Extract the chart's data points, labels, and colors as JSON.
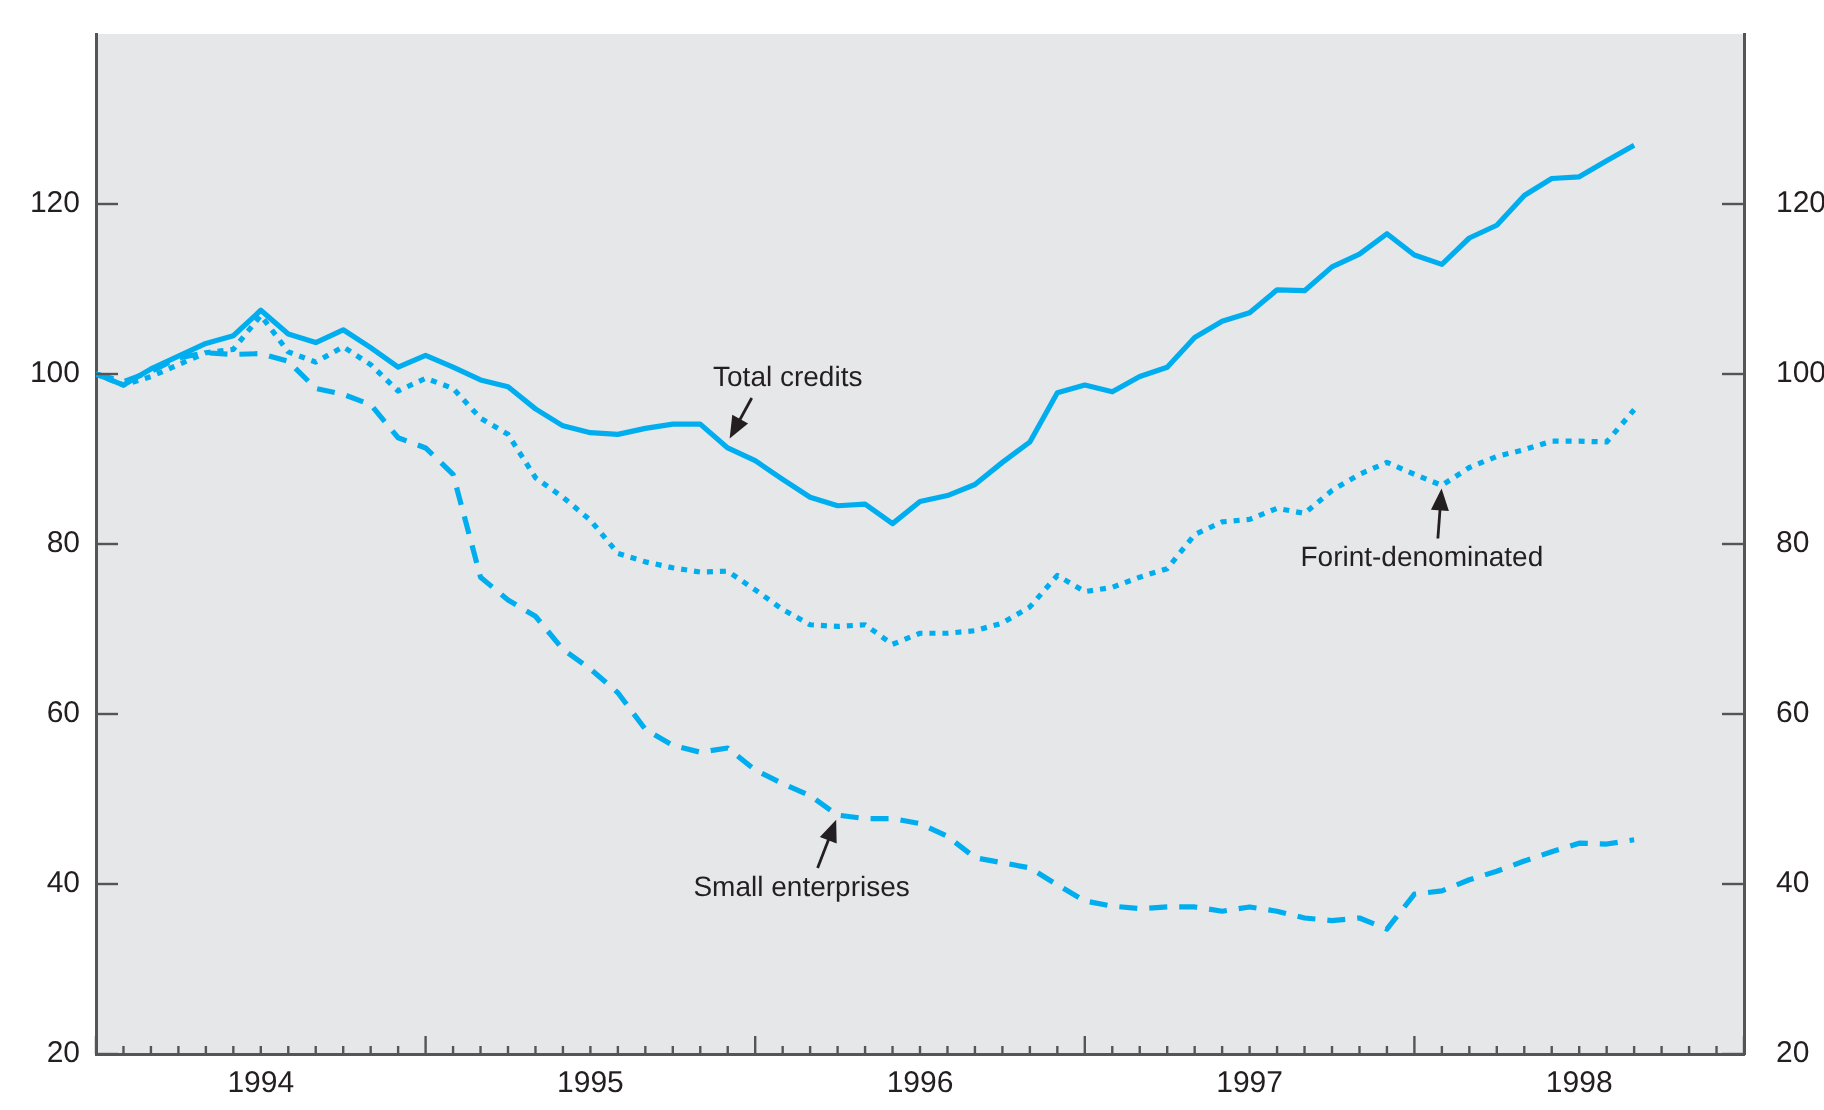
{
  "chart_data": {
    "type": "line",
    "x": [
      "1994-01",
      "1994-02",
      "1994-03",
      "1994-04",
      "1994-05",
      "1994-06",
      "1994-07",
      "1994-08",
      "1994-09",
      "1994-10",
      "1994-11",
      "1994-12",
      "1995-01",
      "1995-02",
      "1995-03",
      "1995-04",
      "1995-05",
      "1995-06",
      "1995-07",
      "1995-08",
      "1995-09",
      "1995-10",
      "1995-11",
      "1995-12",
      "1996-01",
      "1996-02",
      "1996-03",
      "1996-04",
      "1996-05",
      "1996-06",
      "1996-07",
      "1996-08",
      "1996-09",
      "1996-10",
      "1996-11",
      "1996-12",
      "1997-01",
      "1997-02",
      "1997-03",
      "1997-04",
      "1997-05",
      "1997-06",
      "1997-07",
      "1997-08",
      "1997-09",
      "1997-10",
      "1997-11",
      "1997-12",
      "1998-01",
      "1998-02",
      "1998-03",
      "1998-04",
      "1998-05",
      "1998-06",
      "1998-07",
      "1998-08",
      "1998-09"
    ],
    "series": [
      {
        "color": "#00aeef",
        "line_style": "solid",
        "values": [
          100,
          98.7,
          100.6,
          102.1,
          103.6,
          104.5,
          107.5,
          104.7,
          103.7,
          105.2,
          103.1,
          100.8,
          102.2,
          100.8,
          99.3,
          98.5,
          95.9,
          93.9,
          93.1,
          92.9,
          93.6,
          94.1,
          94.1,
          91.3,
          89.8,
          87.6,
          85.5,
          84.5,
          84.7,
          82.4,
          85.0,
          85.7,
          87.0,
          89.6,
          92.0,
          97.8,
          98.7,
          97.9,
          99.7,
          100.8,
          104.3,
          106.2,
          107.2,
          109.9,
          109.8,
          112.6,
          114.1,
          116.5,
          114.0,
          112.9,
          116.0,
          117.5,
          121.0,
          123.0,
          123.2,
          125.1,
          126.9
        ]
      },
      {
        "color": "#00aeef",
        "line_style": "dotted",
        "values": [
          100,
          98.7,
          99.7,
          101.1,
          102.5,
          102.9,
          106.9,
          102.6,
          101.4,
          103.2,
          101.1,
          98.0,
          99.5,
          98.3,
          94.8,
          92.9,
          87.8,
          85.5,
          82.8,
          78.9,
          77.9,
          77.2,
          76.7,
          76.8,
          74.6,
          72.3,
          70.5,
          70.3,
          70.5,
          68.2,
          69.5,
          69.5,
          69.8,
          70.7,
          72.6,
          76.3,
          74.4,
          74.9,
          76.1,
          77.1,
          81.1,
          82.6,
          82.9,
          84.2,
          83.6,
          86.3,
          88.2,
          89.6,
          88.2,
          86.9,
          89.0,
          90.3,
          91.1,
          92.1,
          92.1,
          92.0,
          95.8
        ]
      },
      {
        "color": "#00aeef",
        "line_style": "dashed",
        "values": [
          100,
          99.1,
          100.3,
          101.9,
          102.5,
          102.3,
          102.4,
          101.5,
          98.3,
          97.6,
          96.4,
          92.5,
          91.3,
          88.2,
          76.1,
          73.4,
          71.5,
          67.6,
          65.3,
          62.5,
          58.2,
          56.3,
          55.5,
          56.0,
          53.4,
          51.8,
          50.4,
          48.1,
          47.7,
          47.7,
          47.1,
          45.6,
          43.1,
          42.5,
          41.9,
          39.9,
          38.0,
          37.4,
          37.1,
          37.3,
          37.3,
          36.8,
          37.3,
          36.8,
          36.0,
          35.7,
          36.0,
          34.7,
          38.8,
          39.2,
          40.5,
          41.5,
          42.7,
          43.8,
          44.8,
          44.7,
          45.2
        ]
      }
    ],
    "xlim": [
      "1994-01",
      "1999-01"
    ],
    "xticks": [
      {
        "value": "1994-01",
        "label": null
      },
      {
        "value": "1994-02",
        "label": null
      },
      {
        "value": "1994-03",
        "label": null
      },
      {
        "value": "1994-04",
        "label": null
      },
      {
        "value": "1994-05",
        "label": null
      },
      {
        "value": "1994-06",
        "label": null
      },
      {
        "value": "1994-07",
        "label": "1994"
      },
      {
        "value": "1994-08",
        "label": null
      },
      {
        "value": "1994-09",
        "label": null
      },
      {
        "value": "1994-10",
        "label": null
      },
      {
        "value": "1994-11",
        "label": null
      },
      {
        "value": "1994-12",
        "label": null
      },
      {
        "value": "1995-01",
        "label": null
      },
      {
        "value": "1995-02",
        "label": null
      },
      {
        "value": "1995-03",
        "label": null
      },
      {
        "value": "1995-04",
        "label": null
      },
      {
        "value": "1995-05",
        "label": null
      },
      {
        "value": "1995-06",
        "label": null
      },
      {
        "value": "1995-07",
        "label": "1995"
      },
      {
        "value": "1995-08",
        "label": null
      },
      {
        "value": "1995-09",
        "label": null
      },
      {
        "value": "1995-10",
        "label": null
      },
      {
        "value": "1995-11",
        "label": null
      },
      {
        "value": "1995-12",
        "label": null
      },
      {
        "value": "1996-01",
        "label": null
      },
      {
        "value": "1996-02",
        "label": null
      },
      {
        "value": "1996-03",
        "label": null
      },
      {
        "value": "1996-04",
        "label": null
      },
      {
        "value": "1996-05",
        "label": null
      },
      {
        "value": "1996-06",
        "label": null
      },
      {
        "value": "1996-07",
        "label": "1996"
      },
      {
        "value": "1996-08",
        "label": null
      },
      {
        "value": "1996-09",
        "label": null
      },
      {
        "value": "1996-10",
        "label": null
      },
      {
        "value": "1996-11",
        "label": null
      },
      {
        "value": "1996-12",
        "label": null
      },
      {
        "value": "1997-01",
        "label": null
      },
      {
        "value": "1997-02",
        "label": null
      },
      {
        "value": "1997-03",
        "label": null
      },
      {
        "value": "1997-04",
        "label": null
      },
      {
        "value": "1997-05",
        "label": null
      },
      {
        "value": "1997-06",
        "label": null
      },
      {
        "value": "1997-07",
        "label": "1997"
      },
      {
        "value": "1997-08",
        "label": null
      },
      {
        "value": "1997-09",
        "label": null
      },
      {
        "value": "1997-10",
        "label": null
      },
      {
        "value": "1997-11",
        "label": null
      },
      {
        "value": "1997-12",
        "label": null
      },
      {
        "value": "1998-01",
        "label": null
      },
      {
        "value": "1998-02",
        "label": null
      },
      {
        "value": "1998-03",
        "label": null
      },
      {
        "value": "1998-04",
        "label": null
      },
      {
        "value": "1998-05",
        "label": null
      },
      {
        "value": "1998-06",
        "label": null
      },
      {
        "value": "1998-07",
        "label": "1998"
      },
      {
        "value": "1998-08",
        "label": null
      },
      {
        "value": "1998-09",
        "label": null
      },
      {
        "value": "1998-10",
        "label": null
      },
      {
        "value": "1998-11",
        "label": null
      },
      {
        "value": "1998-12",
        "label": null
      },
      {
        "value": "1999-01",
        "label": null
      }
    ],
    "ylim": [
      20,
      140
    ],
    "yticks": [
      20,
      40,
      60,
      80,
      100,
      120
    ],
    "y2lim": [
      20,
      140
    ],
    "y2ticks": [
      20,
      40,
      60,
      80,
      100,
      120
    ],
    "grid": false,
    "legend": false,
    "marker": "none",
    "annotations": [
      {
        "text": "Total credits",
        "x": "1995-12",
        "y": 92
      },
      {
        "text": "Forint-denominated",
        "x": "1998-02",
        "y": 87
      },
      {
        "text": "Small enterprises",
        "x": "1996-04",
        "y": 48
      }
    ]
  }
}
